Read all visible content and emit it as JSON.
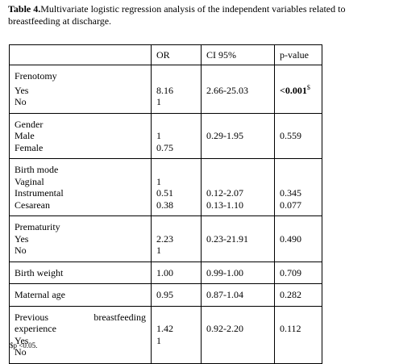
{
  "caption": {
    "label": "Table 4.",
    "text": "Multivariate logistic regression analysis of the independent variables related to breastfeeding at discharge."
  },
  "table": {
    "header": {
      "or": "OR",
      "ci": "CI 95%",
      "p": "p-value"
    },
    "groups": [
      {
        "rows": [
          {
            "label": "Frenotomy"
          },
          {
            "label": "Yes",
            "or": "8.16",
            "ci": "2.66-25.03",
            "p": "<0.001",
            "p_note": "$"
          },
          {
            "label": "No",
            "or": "1"
          }
        ]
      },
      {
        "rows": [
          {
            "label": "Gender"
          },
          {
            "label": "Male",
            "or": "1",
            "ci": "0.29-1.95",
            "p": "0.559"
          },
          {
            "label": "Female",
            "or": "0.75"
          }
        ]
      },
      {
        "rows": [
          {
            "label": "Birth mode"
          },
          {
            "label": "Vaginal",
            "or": "1"
          },
          {
            "label": "Instrumental",
            "or": "0.51",
            "ci": "0.12-2.07",
            "p": "0.345"
          },
          {
            "label": "Cesarean",
            "or": "0.38",
            "ci": "0.13-1.10",
            "p": "0.077"
          }
        ]
      },
      {
        "rows": [
          {
            "label": "Prematurity"
          },
          {
            "label": "Yes",
            "or": "2.23",
            "ci": "0.23-21.91",
            "p": "0.490"
          },
          {
            "label": "No",
            "or": "1"
          }
        ]
      },
      {
        "rows": [
          {
            "label": "Birth weight",
            "or": "1.00",
            "ci": "0.99-1.00",
            "p": "0.709"
          }
        ]
      },
      {
        "rows": [
          {
            "label": "Maternal age",
            "or": "0.95",
            "ci": "0.87-1.04",
            "p": "0.282"
          }
        ]
      },
      {
        "rows": [
          {
            "label": "Previous breastfeeding experience",
            "or": "1.42",
            "ci": "0.92-2.20",
            "p": "0.112"
          },
          {
            "label": "Yes",
            "or": "1"
          },
          {
            "label": "No"
          }
        ]
      }
    ]
  },
  "footnote": "$p <0.05."
}
